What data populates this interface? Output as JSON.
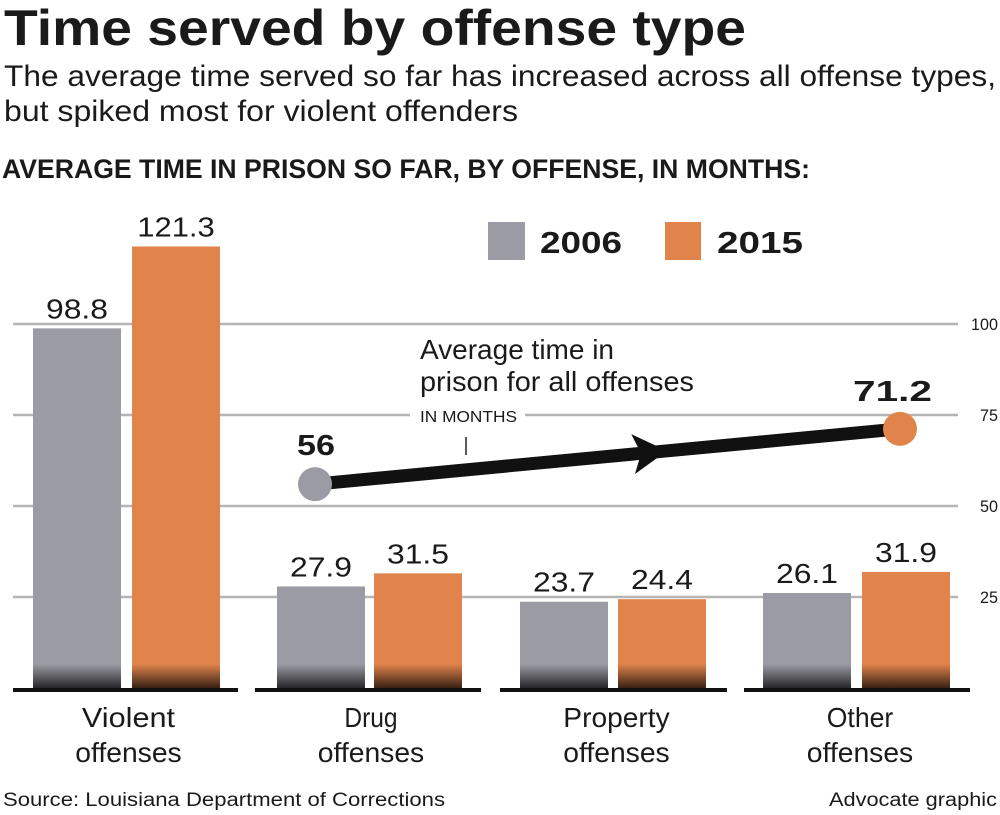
{
  "title": "Time served by offense type",
  "subtitle_lines": [
    "The average time served so far has increased across all offense types,",
    "but spiked most for violent offenders"
  ],
  "chart_heading": "AVERAGE TIME IN PRISON SO FAR, BY OFFENSE, IN MONTHS:",
  "source": "Source: Louisiana Department of Corrections",
  "credit": "Advocate graphic",
  "colors": {
    "2006": "#9b9ba5",
    "2015": "#e0844c"
  },
  "chart_data": {
    "type": "bar",
    "categories": [
      [
        "Violent",
        "offenses"
      ],
      [
        "Drug",
        "offenses"
      ],
      [
        "Property",
        "offenses"
      ],
      [
        "Other",
        "offenses"
      ]
    ],
    "series": [
      {
        "name": "2006",
        "values": [
          98.8,
          27.9,
          23.7,
          26.1
        ],
        "labels": [
          "98.8",
          "27.9",
          "23.7",
          "26.1"
        ]
      },
      {
        "name": "2015",
        "values": [
          121.3,
          31.5,
          24.4,
          31.9
        ],
        "labels": [
          "121.3",
          "31.5",
          "24.4",
          "31.9"
        ]
      }
    ],
    "ylim": [
      0,
      125
    ],
    "yticks": [
      "25",
      "50",
      "75",
      "100"
    ],
    "grid": true,
    "legend": "top-right",
    "overlay": {
      "label_lines": [
        "Average time in",
        "prison for all offenses"
      ],
      "unit": "IN MONTHS",
      "start": {
        "year": "2006",
        "value": 56,
        "label": "56"
      },
      "end": {
        "year": "2015",
        "value": 71.2,
        "label": "71.2"
      }
    }
  }
}
